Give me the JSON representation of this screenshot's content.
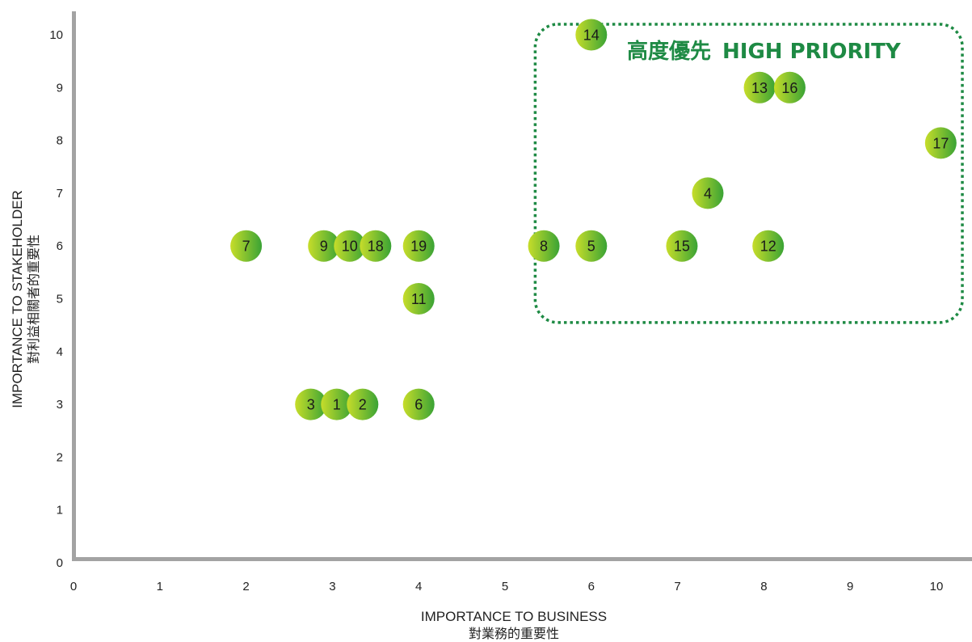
{
  "chart_data": {
    "type": "scatter",
    "x_ticks": [
      "0",
      "1",
      "2",
      "3",
      "4",
      "5",
      "6",
      "7",
      "8",
      "9",
      "10"
    ],
    "y_ticks": [
      "0",
      "1",
      "2",
      "3",
      "4",
      "5",
      "6",
      "7",
      "8",
      "9",
      "10"
    ],
    "xlim": [
      0,
      10.4
    ],
    "ylim": [
      0,
      10.4
    ],
    "grid": false,
    "xlabel": "IMPORTANCE TO BUSINESS",
    "xlabel_sub": "對業務的重要性",
    "ylabel": "IMPORTANCE TO STAKEHOLDER",
    "ylabel_sub": "對利益相關者的重要性",
    "points": [
      {
        "label": "7",
        "x": 2.0,
        "y": 6.0
      },
      {
        "label": "9",
        "x": 2.9,
        "y": 6.0
      },
      {
        "label": "10",
        "x": 3.2,
        "y": 6.0
      },
      {
        "label": "18",
        "x": 3.5,
        "y": 6.0
      },
      {
        "label": "19",
        "x": 4.0,
        "y": 6.0
      },
      {
        "label": "11",
        "x": 4.0,
        "y": 5.0
      },
      {
        "label": "3",
        "x": 2.75,
        "y": 3.0
      },
      {
        "label": "1",
        "x": 3.05,
        "y": 3.0
      },
      {
        "label": "2",
        "x": 3.35,
        "y": 3.0
      },
      {
        "label": "6",
        "x": 4.0,
        "y": 3.0
      },
      {
        "label": "8",
        "x": 5.45,
        "y": 6.0
      },
      {
        "label": "5",
        "x": 6.0,
        "y": 6.0
      },
      {
        "label": "15",
        "x": 7.05,
        "y": 6.0
      },
      {
        "label": "12",
        "x": 8.05,
        "y": 6.0
      },
      {
        "label": "4",
        "x": 7.35,
        "y": 7.0
      },
      {
        "label": "17",
        "x": 10.05,
        "y": 7.95
      },
      {
        "label": "13",
        "x": 7.95,
        "y": 9.0
      },
      {
        "label": "16",
        "x": 8.3,
        "y": 9.0
      },
      {
        "label": "14",
        "x": 6.0,
        "y": 10.0
      }
    ],
    "region": {
      "label_cn": "高度優先",
      "label_en": "HIGH PRIORITY",
      "x_range": [
        5.35,
        10.3
      ],
      "y_range": [
        4.55,
        10.2
      ]
    },
    "colors": {
      "axis": "#a3a3a3",
      "region_border": "#1e8a44",
      "region_text": "#1e8a44",
      "point_light": "#c7dd2a",
      "point_dark": "#3aa335"
    }
  }
}
